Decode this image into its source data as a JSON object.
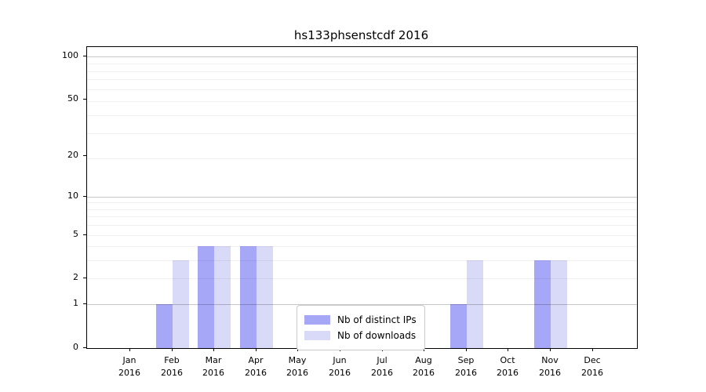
{
  "chart_data": {
    "type": "bar",
    "title": "hs133phsenstcdf 2016",
    "categories": [
      "Jan",
      "Feb",
      "Mar",
      "Apr",
      "May",
      "Jun",
      "Jul",
      "Aug",
      "Sep",
      "Oct",
      "Nov",
      "Dec"
    ],
    "category_year": "2016",
    "series": [
      {
        "name": "Nb of distinct IPs",
        "color": "#a7a7f7",
        "values": [
          0,
          1,
          4,
          4,
          0,
          0,
          0,
          0,
          1,
          0,
          3,
          0
        ]
      },
      {
        "name": "Nb of downloads",
        "color": "#d9d9f8",
        "values": [
          0,
          3,
          4,
          4,
          0,
          0,
          0,
          0,
          3,
          0,
          3,
          0
        ]
      }
    ],
    "y_axis": {
      "scale": "log1p",
      "ticks": [
        0,
        1,
        2,
        5,
        10,
        20,
        50,
        100
      ],
      "ylim": [
        0,
        116
      ],
      "major_gridlines": [
        1,
        10,
        100
      ],
      "minor_gridlines": [
        2,
        3,
        4,
        5,
        6,
        7,
        8,
        9,
        19,
        29,
        39,
        49,
        59,
        69,
        79,
        89
      ]
    },
    "legend": {
      "position": "lower center",
      "entries": [
        "Nb of distinct IPs",
        "Nb of downloads"
      ]
    },
    "grid": true
  },
  "colors": {
    "grid_major": "rgba(0,0,0,0.22)",
    "grid_minor": "rgba(0,0,0,0.06)",
    "axis": "#000000",
    "legend_border": "#cccccc",
    "background": "#ffffff"
  }
}
